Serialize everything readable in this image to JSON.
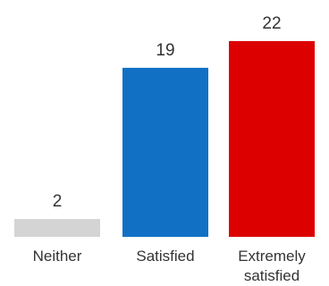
{
  "chart_data": {
    "type": "bar",
    "title": "",
    "xlabel": "",
    "ylabel": "",
    "categories": [
      [
        "Neither"
      ],
      [
        "Satisfied"
      ],
      [
        "Extremely",
        "satisfied"
      ]
    ],
    "category_names": [
      "Neither",
      "Satisfied",
      "Extremely satisfied"
    ],
    "values": [
      2,
      19,
      22
    ],
    "value_labels": [
      "2",
      "19",
      "22"
    ],
    "ylim": [
      0,
      22
    ],
    "grid": false,
    "legend": "none",
    "colors": [
      "#d4d4d4",
      "#1170c4",
      "#dc0000"
    ]
  }
}
